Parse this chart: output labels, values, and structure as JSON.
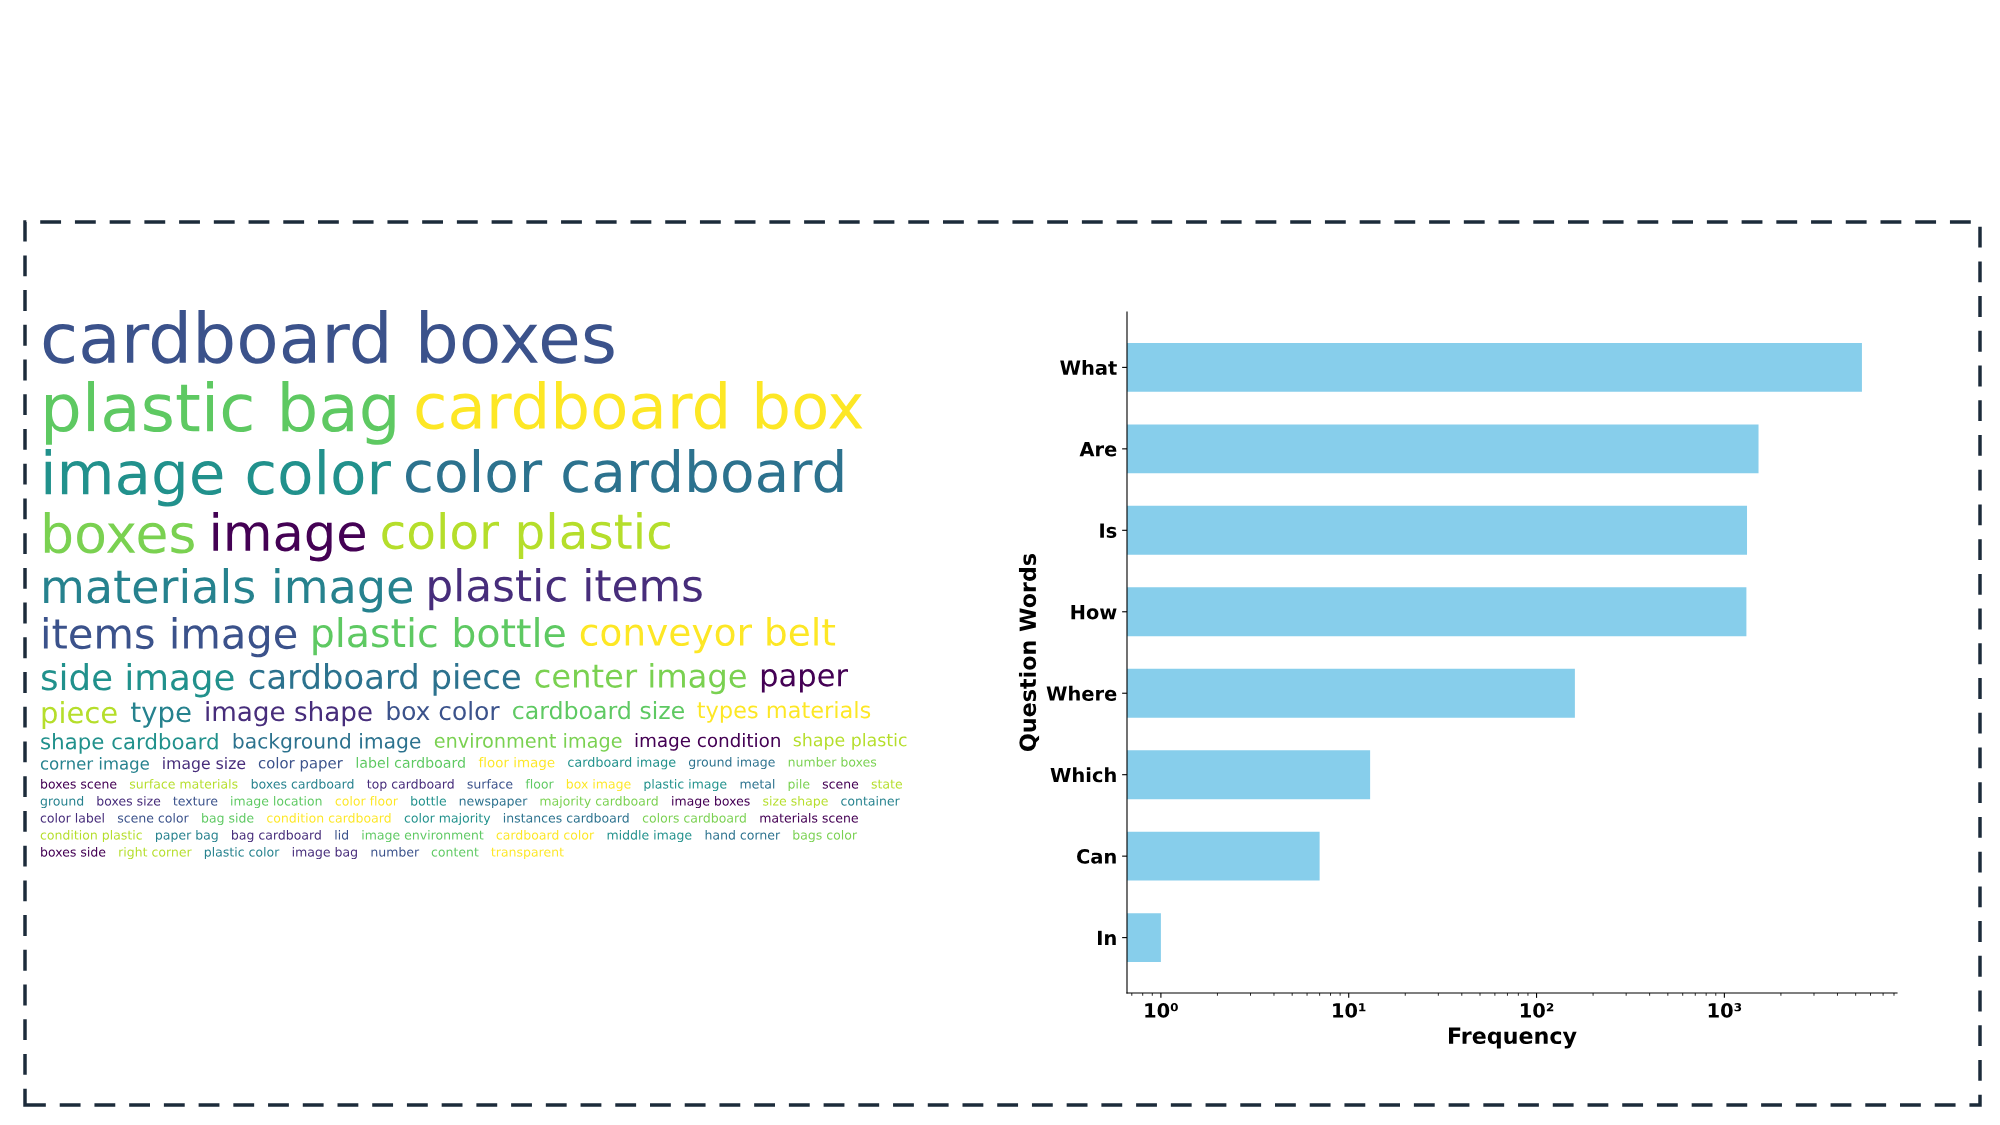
{
  "chart_data": [
    {
      "type": "other",
      "annotations": [
        "cardboard boxes",
        "plastic bag",
        "cardboard box",
        "image color",
        "color cardboard",
        "boxes",
        "image",
        "color plastic",
        "materials image",
        "plastic items",
        "items image",
        "plastic bottle",
        "conveyor belt",
        "side image",
        "cardboard piece",
        "center image",
        "paper",
        "piece",
        "type",
        "image shape",
        "box color",
        "cardboard size",
        "types materials",
        "shape cardboard",
        "background image",
        "environment image",
        "image condition",
        "shape plastic",
        "corner image",
        "image size",
        "color paper",
        "label cardboard",
        "floor image",
        "cardboard image",
        "ground image",
        "number boxes",
        "boxes scene",
        "surface materials",
        "boxes cardboard",
        "top cardboard",
        "surface",
        "floor",
        "box image",
        "plastic image",
        "metal",
        "pile",
        "scene",
        "state",
        "ground",
        "boxes size",
        "texture",
        "image location",
        "color floor",
        "bottle",
        "newspaper",
        "majority cardboard",
        "image boxes",
        "size shape",
        "container",
        "color label",
        "scene color",
        "bag side",
        "condition cardboard",
        "color majority",
        "instances cardboard",
        "colors cardboard",
        "materials scene",
        "condition plastic",
        "paper bag",
        "bag cardboard",
        "lid",
        "image environment",
        "cardboard color",
        "middle image",
        "hand corner",
        "bags color",
        "boxes side",
        "right corner",
        "plastic color",
        "image bag",
        "number",
        "content",
        "transparent"
      ]
    },
    {
      "type": "bar",
      "orientation": "horizontal",
      "categories": [
        "What",
        "Are",
        "Is",
        "How",
        "Where",
        "Which",
        "Can",
        "In"
      ],
      "values": [
        5400,
        1520,
        1320,
        1310,
        160,
        13,
        7,
        1
      ],
      "color": "#87ceeb",
      "xlabel": "Frequency",
      "ylabel": "Question Words",
      "log": "x",
      "xlim": [
        0.66,
        8300
      ],
      "xticks": [
        {
          "value": 1,
          "label": "10⁰"
        },
        {
          "value": 10,
          "label": "10¹"
        },
        {
          "value": 100,
          "label": "10²"
        },
        {
          "value": 1000,
          "label": "10³"
        }
      ],
      "grid": false,
      "legend": false
    }
  ]
}
